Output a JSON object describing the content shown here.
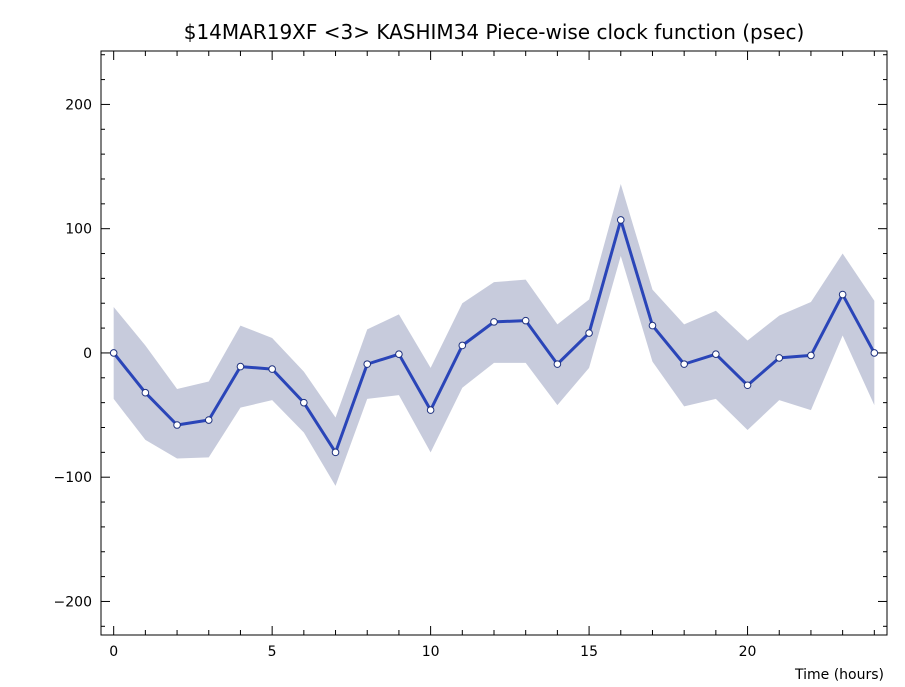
{
  "chart_data": {
    "type": "line",
    "title": "$14MAR19XF <3>  KASHIM34  Piece-wise clock function (psec)",
    "xlabel": "Time (hours)",
    "ylabel": "",
    "xlim": [
      -0.4,
      24.4
    ],
    "ylim": [
      -227,
      243
    ],
    "x_major_ticks": [
      0,
      5,
      10,
      15,
      20
    ],
    "x_minor_step": 1,
    "y_major_ticks": [
      -200,
      -100,
      0,
      100,
      200
    ],
    "y_minor_step": 20,
    "grid": false,
    "x": [
      0,
      1,
      2,
      3,
      4,
      5,
      6,
      7,
      8,
      9,
      10,
      11,
      12,
      13,
      14,
      15,
      16,
      17,
      18,
      19,
      20,
      21,
      22,
      23,
      24
    ],
    "series": [
      {
        "values": [
          0,
          -32,
          -58,
          -54,
          -11,
          -13,
          -40,
          -80,
          -9,
          -1,
          -46,
          6,
          25,
          26,
          -9,
          16,
          107,
          22,
          -9,
          -1,
          -26,
          -4,
          -2,
          47,
          0
        ],
        "upper": [
          37,
          6,
          -29,
          -23,
          22,
          12,
          -15,
          -52,
          19,
          31,
          -12,
          40,
          57,
          59,
          23,
          43,
          136,
          51,
          23,
          34,
          10,
          30,
          41,
          80,
          42
        ],
        "lower": [
          -37,
          -70,
          -85,
          -84,
          -44,
          -38,
          -64,
          -107,
          -37,
          -34,
          -80,
          -28,
          -8,
          -8,
          -42,
          -12,
          78,
          -7,
          -43,
          -37,
          -62,
          -38,
          -46,
          14,
          -42
        ],
        "color": "#2a45b8",
        "band_color": "#c7cbdc"
      }
    ]
  }
}
